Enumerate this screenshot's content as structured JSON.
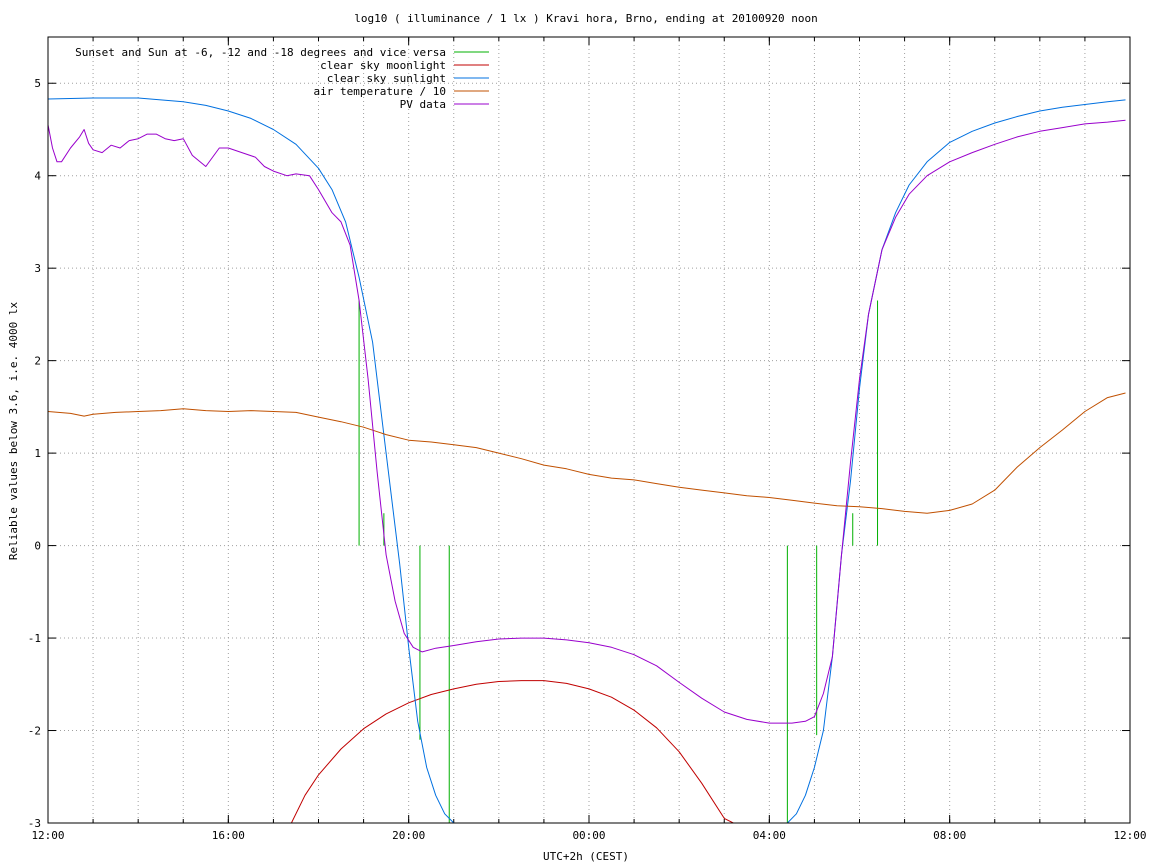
{
  "chart_data": {
    "type": "line",
    "title": "log10 ( illuminance / 1 lx ) Kravi hora, Brno, ending at 20100920 noon",
    "xlabel": "UTC+2h (CEST)",
    "ylabel": "Reliable values below 3.6, i.e. 4000 lx",
    "xlim": [
      12,
      36
    ],
    "ylim": [
      -3,
      5.5
    ],
    "x_ticks": [
      {
        "value": 12,
        "label": "12:00"
      },
      {
        "value": 16,
        "label": "16:00"
      },
      {
        "value": 20,
        "label": "20:00"
      },
      {
        "value": 24,
        "label": "00:00"
      },
      {
        "value": 28,
        "label": "04:00"
      },
      {
        "value": 32,
        "label": "08:00"
      },
      {
        "value": 36,
        "label": "12:00"
      }
    ],
    "x_minor_every_hours": 1,
    "y_ticks": [
      5,
      4,
      3,
      2,
      1,
      0,
      -1,
      -2,
      -3
    ],
    "grid": true,
    "legend_position": "top-left",
    "series": [
      {
        "name": "Sunset and Sun at -6, -12 and -18 degrees and vice versa",
        "color": "#00b000",
        "style": "impulses",
        "impulses": [
          {
            "x": 18.9,
            "y0": 0,
            "y1": 2.65
          },
          {
            "x": 19.45,
            "y0": 0,
            "y1": 0.35
          },
          {
            "x": 20.25,
            "y0": 0,
            "y1": -2.1
          },
          {
            "x": 20.9,
            "y0": 0,
            "y1": -3.0
          },
          {
            "x": 28.4,
            "y0": 0,
            "y1": -3.0
          },
          {
            "x": 29.05,
            "y0": 0,
            "y1": -2.05
          },
          {
            "x": 29.85,
            "y0": 0,
            "y1": 0.35
          },
          {
            "x": 30.4,
            "y0": 0,
            "y1": 2.65
          }
        ]
      },
      {
        "name": "clear sky moonlight",
        "color": "#c00000",
        "x": [
          17.4,
          17.7,
          18.0,
          18.5,
          19.0,
          19.5,
          20.0,
          20.5,
          21.0,
          21.5,
          22.0,
          22.5,
          23.0,
          23.5,
          24.0,
          24.5,
          25.0,
          25.5,
          26.0,
          26.5,
          27.0,
          27.2
        ],
        "y": [
          -3.0,
          -2.7,
          -2.48,
          -2.2,
          -1.98,
          -1.82,
          -1.7,
          -1.61,
          -1.55,
          -1.5,
          -1.47,
          -1.46,
          -1.46,
          -1.49,
          -1.55,
          -1.64,
          -1.78,
          -1.97,
          -2.23,
          -2.57,
          -2.95,
          -3.0
        ]
      },
      {
        "name": "clear sky sunlight",
        "color": "#0070e0",
        "x": [
          12.0,
          13.0,
          14.0,
          15.0,
          15.5,
          16.0,
          16.5,
          17.0,
          17.5,
          18.0,
          18.3,
          18.6,
          18.9,
          19.2,
          19.5,
          19.8,
          20.0,
          20.2,
          20.4,
          20.6,
          20.8,
          21.0,
          28.4,
          28.6,
          28.8,
          29.0,
          29.2,
          29.4,
          29.6,
          29.8,
          30.0,
          30.2,
          30.5,
          30.8,
          31.1,
          31.5,
          32.0,
          32.5,
          33.0,
          33.5,
          34.0,
          34.5,
          35.0,
          35.5,
          35.9
        ],
        "y": [
          4.83,
          4.84,
          4.84,
          4.8,
          4.76,
          4.7,
          4.62,
          4.5,
          4.34,
          4.08,
          3.85,
          3.5,
          2.9,
          2.2,
          1.0,
          -0.2,
          -1.1,
          -1.9,
          -2.4,
          -2.7,
          -2.9,
          -3.0,
          -3.0,
          -2.9,
          -2.7,
          -2.4,
          -2.0,
          -1.2,
          -0.1,
          0.7,
          1.7,
          2.5,
          3.2,
          3.6,
          3.9,
          4.15,
          4.36,
          4.48,
          4.57,
          4.64,
          4.7,
          4.74,
          4.77,
          4.8,
          4.82
        ]
      },
      {
        "name": "air temperature / 10",
        "color": "#c05000",
        "x": [
          12.0,
          12.5,
          12.8,
          13.0,
          13.5,
          14.0,
          14.5,
          15.0,
          15.5,
          16.0,
          16.5,
          17.0,
          17.5,
          18.0,
          18.5,
          19.0,
          19.5,
          20.0,
          20.5,
          21.0,
          21.5,
          22.0,
          22.5,
          23.0,
          23.5,
          24.0,
          24.5,
          25.0,
          25.5,
          26.0,
          26.5,
          27.0,
          27.5,
          28.0,
          28.5,
          29.0,
          29.5,
          30.0,
          30.5,
          31.0,
          31.5,
          32.0,
          32.5,
          33.0,
          33.5,
          34.0,
          34.5,
          35.0,
          35.5,
          35.9
        ],
        "y": [
          1.45,
          1.43,
          1.4,
          1.42,
          1.44,
          1.45,
          1.46,
          1.48,
          1.46,
          1.45,
          1.46,
          1.45,
          1.44,
          1.39,
          1.34,
          1.28,
          1.2,
          1.14,
          1.12,
          1.09,
          1.06,
          1.0,
          0.94,
          0.87,
          0.83,
          0.77,
          0.73,
          0.71,
          0.67,
          0.63,
          0.6,
          0.57,
          0.54,
          0.52,
          0.49,
          0.46,
          0.43,
          0.42,
          0.4,
          0.37,
          0.35,
          0.38,
          0.45,
          0.6,
          0.85,
          1.06,
          1.25,
          1.45,
          1.6,
          1.65
        ]
      },
      {
        "name": "PV data",
        "color": "#9900cc",
        "x": [
          12.0,
          12.1,
          12.2,
          12.3,
          12.5,
          12.7,
          12.8,
          12.9,
          13.0,
          13.2,
          13.4,
          13.6,
          13.8,
          14.0,
          14.2,
          14.4,
          14.6,
          14.8,
          15.0,
          15.2,
          15.5,
          15.8,
          16.0,
          16.3,
          16.6,
          16.8,
          17.0,
          17.3,
          17.5,
          17.8,
          18.0,
          18.3,
          18.5,
          18.7,
          18.9,
          19.1,
          19.3,
          19.5,
          19.7,
          19.9,
          20.1,
          20.3,
          20.6,
          21.0,
          21.5,
          22.0,
          22.5,
          23.0,
          23.5,
          24.0,
          24.5,
          25.0,
          25.5,
          26.0,
          26.5,
          27.0,
          27.5,
          28.0,
          28.5,
          28.8,
          29.0,
          29.2,
          29.4,
          29.6,
          29.8,
          30.0,
          30.2,
          30.5,
          30.8,
          31.1,
          31.5,
          32.0,
          32.5,
          33.0,
          33.5,
          34.0,
          34.5,
          35.0,
          35.5,
          35.9
        ],
        "y": [
          4.55,
          4.3,
          4.15,
          4.15,
          4.3,
          4.42,
          4.5,
          4.35,
          4.28,
          4.25,
          4.33,
          4.3,
          4.38,
          4.4,
          4.45,
          4.45,
          4.4,
          4.38,
          4.4,
          4.22,
          4.1,
          4.3,
          4.3,
          4.25,
          4.2,
          4.1,
          4.05,
          4.0,
          4.02,
          4.0,
          3.85,
          3.6,
          3.5,
          3.25,
          2.65,
          1.8,
          0.8,
          -0.1,
          -0.6,
          -0.95,
          -1.1,
          -1.15,
          -1.11,
          -1.08,
          -1.04,
          -1.01,
          -1.0,
          -1.0,
          -1.02,
          -1.05,
          -1.1,
          -1.18,
          -1.3,
          -1.48,
          -1.65,
          -1.8,
          -1.88,
          -1.92,
          -1.92,
          -1.9,
          -1.85,
          -1.6,
          -1.2,
          -0.1,
          0.9,
          1.8,
          2.5,
          3.2,
          3.55,
          3.8,
          4.0,
          4.15,
          4.25,
          4.34,
          4.42,
          4.48,
          4.52,
          4.56,
          4.58,
          4.6
        ]
      }
    ]
  }
}
